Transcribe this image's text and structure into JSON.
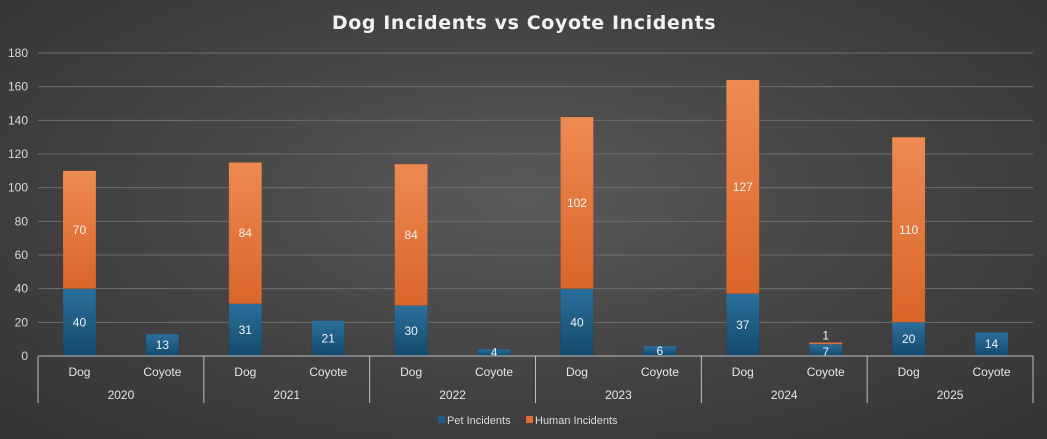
{
  "chart_data": {
    "type": "bar",
    "stacked": true,
    "title": "Dog Incidents vs Coyote Incidents",
    "xlabel": "",
    "ylabel": "",
    "ylim": [
      0,
      180
    ],
    "yticks": [
      0,
      20,
      40,
      60,
      80,
      100,
      120,
      140,
      160,
      180
    ],
    "grid": true,
    "legend_position": "bottom",
    "groups": [
      {
        "label": "2020",
        "categories": [
          "Dog",
          "Coyote"
        ]
      },
      {
        "label": "2021",
        "categories": [
          "Dog",
          "Coyote"
        ]
      },
      {
        "label": "2022",
        "categories": [
          "Dog",
          "Coyote"
        ]
      },
      {
        "label": "2023",
        "categories": [
          "Dog",
          "Coyote"
        ]
      },
      {
        "label": "2024",
        "categories": [
          "Dog",
          "Coyote"
        ]
      },
      {
        "label": "2025",
        "categories": [
          "Dog",
          "Coyote"
        ]
      }
    ],
    "series": [
      {
        "name": "Pet Incidents",
        "color": "#1f5c83",
        "values": [
          40,
          13,
          31,
          21,
          30,
          4,
          40,
          6,
          37,
          7,
          20,
          14
        ]
      },
      {
        "name": "Human Incidents",
        "color": "#e06f33",
        "values": [
          70,
          null,
          84,
          null,
          84,
          null,
          102,
          null,
          127,
          1,
          110,
          null
        ]
      }
    ]
  }
}
